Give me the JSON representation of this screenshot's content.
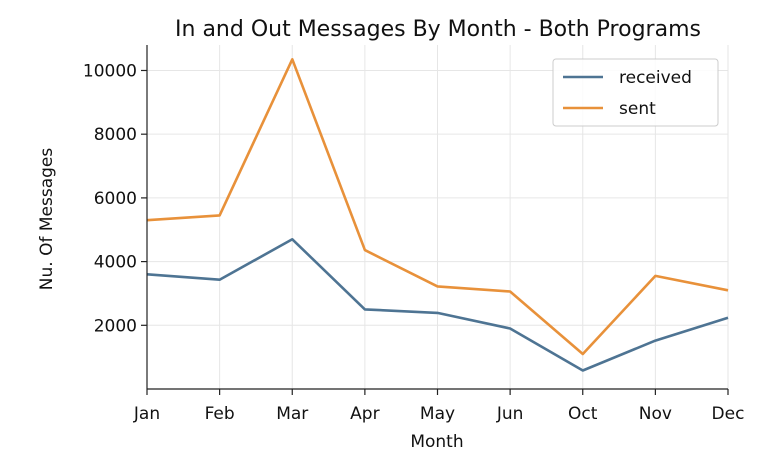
{
  "chart_data": {
    "type": "line",
    "title": "In and Out Messages By Month - Both Programs",
    "xlabel": "Month",
    "ylabel": "Nu. Of Messages",
    "categories": [
      "Jan",
      "Feb",
      "Mar",
      "Apr",
      "May",
      "Jun",
      "Oct",
      "Nov",
      "Dec"
    ],
    "series": [
      {
        "name": "received",
        "color": "#4e7493",
        "values": [
          3600,
          3430,
          4700,
          2500,
          2390,
          1900,
          580,
          1520,
          2240
        ]
      },
      {
        "name": "sent",
        "color": "#e8913a",
        "values": [
          5300,
          5450,
          10350,
          4360,
          3220,
          3060,
          1100,
          3550,
          3100
        ]
      }
    ],
    "yticks": [
      2000,
      4000,
      6000,
      8000,
      10000
    ],
    "ylim": [
      0,
      10800
    ],
    "grid": true,
    "legend": "top-right"
  }
}
